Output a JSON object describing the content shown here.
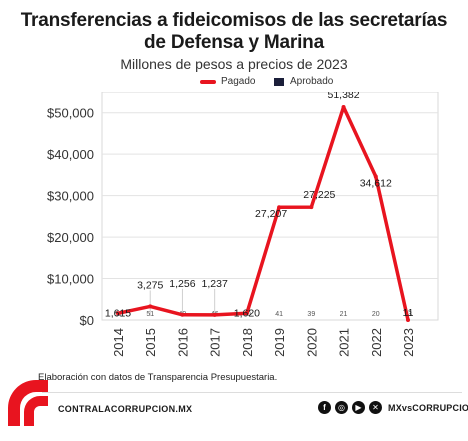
{
  "header": {
    "title_line1": "Transferencias a fideicomisos de las secretarías",
    "title_line2": "de Defensa y Marina",
    "subtitle": "Millones de pesos a precios de 2023"
  },
  "legend": {
    "pagado": "Pagado",
    "aprobado": "Aprobado"
  },
  "colors": {
    "pagado": "#e8141f",
    "aprobado": "#1b1f3a",
    "grid": "#e3e3e3"
  },
  "chart_data": {
    "type": "line",
    "x": [
      "2014",
      "2015",
      "2016",
      "2017",
      "2018",
      "2019",
      "2020",
      "2021",
      "2022",
      "2023"
    ],
    "ylim": [
      0,
      55000
    ],
    "yticks": [
      0,
      10000,
      20000,
      30000,
      40000,
      50000
    ],
    "ytick_labels": [
      "$0",
      "$10,000",
      "$20,000",
      "$30,000",
      "$40,000",
      "$50,000"
    ],
    "grid": true,
    "legend_position": "top-center",
    "series": [
      {
        "name": "Pagado",
        "values": [
          1615,
          3275,
          1256,
          1237,
          1620,
          27207,
          27225,
          51382,
          34612,
          11
        ],
        "labels": [
          "1,615",
          "3,275",
          "1,256",
          "1,237",
          "1,620",
          "27,207",
          "27,225",
          "51,382",
          "34,612",
          "11"
        ]
      },
      {
        "name": "Aprobado",
        "values": [
          51,
          51,
          49,
          46,
          40,
          41,
          39,
          21,
          20,
          13
        ],
        "labels": [
          "51",
          "51",
          "49",
          "46",
          "40",
          "41",
          "39",
          "21",
          "20",
          "13"
        ]
      }
    ]
  },
  "footer": {
    "source": "Elaboración con datos de Transparencia Presupuestaria.",
    "site": "CONTRALACORRUPCION.MX",
    "handle": "MXvsCORRUPCION"
  },
  "icons": [
    "facebook-icon",
    "instagram-icon",
    "youtube-icon",
    "x-icon"
  ]
}
